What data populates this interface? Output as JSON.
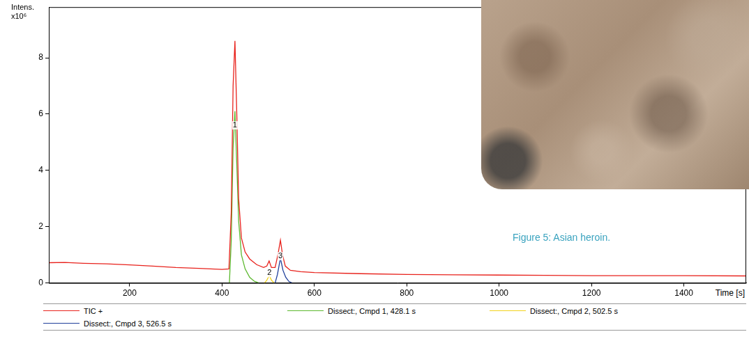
{
  "chart_data": {
    "type": "line",
    "y_label": "Intens.",
    "y_unit": "x10⁶",
    "x_label": "Time [s]",
    "xlim": [
      25,
      1535
    ],
    "xticks": [
      200,
      400,
      600,
      800,
      1000,
      1200,
      1400
    ],
    "ylim": [
      0,
      9.8
    ],
    "yticks": [
      0,
      2,
      4,
      6,
      8
    ],
    "grid": false,
    "legend": "bottom",
    "series": [
      {
        "name": "TIC +",
        "color": "#e8221c",
        "x": [
          25,
          60,
          100,
          150,
          200,
          250,
          300,
          350,
          400,
          415,
          420,
          424,
          428,
          432,
          436,
          442,
          450,
          460,
          475,
          490,
          497,
          502,
          507,
          515,
          521,
          526.5,
          531,
          537,
          548,
          570,
          600,
          700,
          800,
          900,
          1000,
          1100,
          1200,
          1300,
          1400,
          1535
        ],
        "values": [
          0.72,
          0.73,
          0.7,
          0.68,
          0.64,
          0.6,
          0.55,
          0.52,
          0.48,
          0.5,
          2.5,
          7.0,
          8.6,
          6.0,
          3.0,
          1.6,
          1.1,
          0.85,
          0.65,
          0.55,
          0.6,
          0.78,
          0.55,
          0.55,
          1.0,
          1.52,
          1.0,
          0.6,
          0.45,
          0.4,
          0.37,
          0.33,
          0.3,
          0.29,
          0.28,
          0.27,
          0.26,
          0.26,
          0.26,
          0.25
        ]
      },
      {
        "name": "Dissect:, Cmpd 1, 428.1 s",
        "color": "#5cb82e",
        "x": [
          416,
          420,
          424,
          428,
          432,
          436,
          442,
          450,
          460,
          470,
          480
        ],
        "values": [
          0,
          1.5,
          4.8,
          6.1,
          4.2,
          2.2,
          1.0,
          0.5,
          0.2,
          0.06,
          0
        ]
      },
      {
        "name": "Dissect:, Cmpd 2, 502.5 s",
        "color": "#f2d21b",
        "x": [
          492,
          497,
          502.5,
          507,
          513
        ],
        "values": [
          0,
          0.1,
          0.27,
          0.1,
          0
        ]
      },
      {
        "name": "Dissect:, Cmpd 3, 526.5 s",
        "color": "#1f3f9a",
        "x": [
          515,
          520,
          526.5,
          532,
          538,
          545,
          552
        ],
        "values": [
          0,
          0.3,
          0.88,
          0.45,
          0.2,
          0.05,
          0
        ]
      }
    ],
    "annotations": [
      {
        "text": "1",
        "x": 428,
        "y": 5.6
      },
      {
        "text": "2",
        "x": 502.5,
        "y": 0.35
      },
      {
        "text": "3",
        "x": 526.5,
        "y": 0.95
      }
    ]
  },
  "caption": "Figure 5: Asian heroin."
}
